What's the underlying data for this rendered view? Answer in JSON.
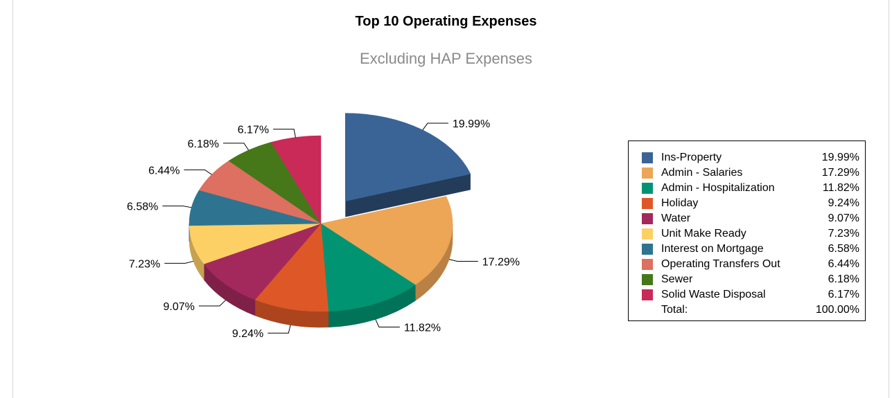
{
  "chart_data": {
    "type": "pie",
    "title": "Top 10 Operating Expenses",
    "subtitle": "Excluding HAP Expenses",
    "categories": [
      "Ins-Property",
      "Admin - Salaries",
      "Admin - Hospitalization",
      "Holiday",
      "Water",
      "Unit Make Ready",
      "Interest on Mortgage",
      "Operating Transfers Out",
      "Sewer",
      "Solid Waste Disposal"
    ],
    "values": [
      19.99,
      17.29,
      11.82,
      9.24,
      9.07,
      7.23,
      6.58,
      6.44,
      6.18,
      6.17
    ],
    "value_labels": [
      "19.99%",
      "17.29%",
      "11.82%",
      "9.24%",
      "9.07%",
      "7.23%",
      "6.58%",
      "6.44%",
      "6.18%",
      "6.17%"
    ],
    "colors": [
      "#3a6496",
      "#eda556",
      "#009472",
      "#dd5826",
      "#a3295d",
      "#fdd066",
      "#2e7490",
      "#dd7060",
      "#46781a",
      "#c92a58"
    ],
    "exploded_slice": "Ins-Property",
    "legend_position": "right",
    "total_label": "Total:",
    "total_value": "100.00%"
  }
}
